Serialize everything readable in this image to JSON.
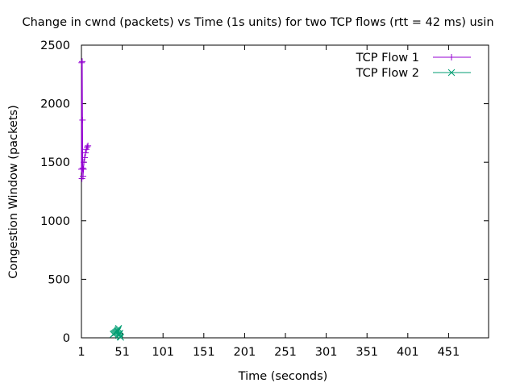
{
  "chart_data": {
    "type": "line",
    "title": "Change in cwnd (packets) vs Time (1s units) for two TCP flows (rtt = 42 ms) usin",
    "xlabel": "Time (seconds)",
    "ylabel": "Congestion Window (packets)",
    "xlim": [
      1,
      500
    ],
    "ylim": [
      0,
      2500
    ],
    "x_ticks": [
      1,
      51,
      101,
      151,
      201,
      251,
      301,
      351,
      401,
      451
    ],
    "y_ticks": [
      0,
      500,
      1000,
      1500,
      2000,
      2500
    ],
    "grid": false,
    "legend_position": "top-right",
    "series": [
      {
        "name": "TCP Flow 1",
        "color": "#9400d3",
        "marker": "plus",
        "x": [
          1,
          1.3,
          1.6,
          2.0,
          2.3,
          2.6,
          3.0,
          3.5,
          4.0,
          5.0,
          6.0,
          7.0,
          8.0,
          9.0
        ],
        "y": [
          1440,
          2350,
          1360,
          2360,
          1860,
          1450,
          1380,
          1440,
          1500,
          1540,
          1580,
          1610,
          1630,
          1640
        ]
      },
      {
        "name": "TCP Flow 2",
        "color": "#009e73",
        "marker": "x",
        "x": [
          40,
          41,
          42,
          43,
          44,
          45,
          45.5,
          46,
          46.5,
          47,
          47.5,
          48,
          48.5,
          49
        ],
        "y": [
          30,
          35,
          40,
          45,
          50,
          55,
          60,
          70,
          80,
          20,
          30,
          40,
          10,
          5
        ]
      }
    ]
  }
}
